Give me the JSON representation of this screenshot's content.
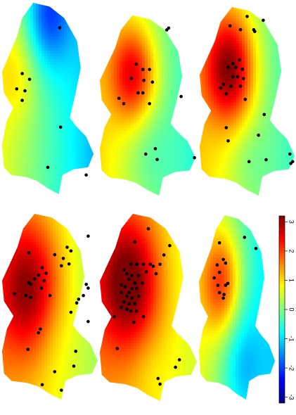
{
  "colorbar": {
    "range": [
      -3.2,
      3.2
    ],
    "ticks": [
      {
        "value": 3,
        "label": "3"
      },
      {
        "value": 2,
        "label": "2"
      },
      {
        "value": 1,
        "label": "1"
      },
      {
        "value": 0,
        "label": "0"
      },
      {
        "value": -1,
        "label": "-1"
      },
      {
        "value": -2,
        "label": "-2"
      },
      {
        "value": -3,
        "label": "-3"
      }
    ],
    "stops": [
      "#00007f",
      "#0000ff",
      "#007fff",
      "#00ffff",
      "#7fff7f",
      "#ffff00",
      "#ff7f00",
      "#ff0000",
      "#7f0000"
    ]
  },
  "panels": [
    {
      "id": "panel-1",
      "surface": {
        "base": -0.3,
        "gradient": 1.2,
        "hotspot": {
          "u": 0.18,
          "v": 0.38,
          "amp": 0.6,
          "r": 0.22
        },
        "coldspot": {
          "u": 0.5,
          "v": 0.05,
          "amp": -1.7,
          "r": 0.25
        }
      },
      "points": [
        [
          0.63,
          0.13
        ],
        [
          0.22,
          0.37
        ],
        [
          0.3,
          0.4
        ],
        [
          0.16,
          0.45
        ],
        [
          0.25,
          0.46
        ],
        [
          0.22,
          0.51
        ],
        [
          0.64,
          0.65
        ],
        [
          0.5,
          0.86
        ],
        [
          0.92,
          0.9
        ]
      ]
    },
    {
      "id": "panel-2",
      "surface": {
        "base": 0.2,
        "gradient": 1.0,
        "hotspot": {
          "u": 0.35,
          "v": 0.33,
          "amp": 2.1,
          "r": 0.24
        },
        "coldspot": {
          "u": 0.5,
          "v": 0.75,
          "amp": -0.4,
          "r": 0.25
        }
      },
      "points": [
        [
          0.72,
          0.07
        ],
        [
          0.7,
          0.08
        ],
        [
          0.38,
          0.27
        ],
        [
          0.45,
          0.3
        ],
        [
          0.52,
          0.3
        ],
        [
          0.33,
          0.35
        ],
        [
          0.46,
          0.36
        ],
        [
          0.55,
          0.37
        ],
        [
          0.4,
          0.43
        ],
        [
          0.45,
          0.43
        ],
        [
          0.2,
          0.46
        ],
        [
          0.25,
          0.49
        ],
        [
          0.52,
          0.49
        ],
        [
          0.85,
          0.45
        ],
        [
          0.48,
          0.77
        ],
        [
          0.58,
          0.74
        ],
        [
          0.6,
          0.8
        ],
        [
          0.99,
          0.79
        ]
      ]
    },
    {
      "id": "panel-3",
      "surface": {
        "base": 0.3,
        "gradient": 1.0,
        "hotspot": {
          "u": 0.32,
          "v": 0.33,
          "amp": 2.6,
          "r": 0.26
        },
        "coldspot": {
          "u": 0.5,
          "v": 0.8,
          "amp": -0.3,
          "r": 0.2
        }
      },
      "points": [
        [
          0.5,
          0.05
        ],
        [
          0.67,
          0.07
        ],
        [
          0.32,
          0.1
        ],
        [
          0.43,
          0.12
        ],
        [
          0.57,
          0.12
        ],
        [
          0.58,
          0.13
        ],
        [
          0.3,
          0.32
        ],
        [
          0.35,
          0.3
        ],
        [
          0.38,
          0.32
        ],
        [
          0.42,
          0.28
        ],
        [
          0.45,
          0.33
        ],
        [
          0.35,
          0.37
        ],
        [
          0.4,
          0.37
        ],
        [
          0.46,
          0.38
        ],
        [
          0.33,
          0.42
        ],
        [
          0.43,
          0.42
        ],
        [
          0.22,
          0.43
        ],
        [
          0.25,
          0.41
        ],
        [
          0.28,
          0.46
        ],
        [
          0.48,
          0.49
        ],
        [
          0.68,
          0.57
        ],
        [
          0.28,
          0.64
        ],
        [
          0.3,
          0.71
        ],
        [
          0.62,
          0.68
        ],
        [
          0.95,
          0.78
        ],
        [
          0.52,
          0.82
        ],
        [
          0.7,
          0.81
        ],
        [
          0.98,
          0.82
        ],
        [
          0.96,
          0.83
        ]
      ]
    },
    {
      "id": "panel-4",
      "surface": {
        "base": 0.8,
        "gradient": 0.7,
        "hotspot": {
          "u": 0.28,
          "v": 0.4,
          "amp": 2.1,
          "r": 0.33
        },
        "coldspot": {
          "u": 0.5,
          "v": 0.65,
          "amp": -0.2,
          "r": 0.2
        }
      },
      "points": [
        [
          0.9,
          0.12
        ],
        [
          0.68,
          0.18
        ],
        [
          0.72,
          0.2
        ],
        [
          0.28,
          0.21
        ],
        [
          0.55,
          0.22
        ],
        [
          0.64,
          0.24
        ],
        [
          0.7,
          0.27
        ],
        [
          0.62,
          0.28
        ],
        [
          0.42,
          0.29
        ],
        [
          0.46,
          0.32
        ],
        [
          0.38,
          0.33
        ],
        [
          0.34,
          0.35
        ],
        [
          0.44,
          0.36
        ],
        [
          0.28,
          0.37
        ],
        [
          0.3,
          0.38
        ],
        [
          0.41,
          0.4
        ],
        [
          0.13,
          0.43
        ],
        [
          0.25,
          0.44
        ],
        [
          0.3,
          0.45
        ],
        [
          0.5,
          0.44
        ],
        [
          0.88,
          0.38
        ],
        [
          0.9,
          0.4
        ],
        [
          0.85,
          0.44
        ],
        [
          0.8,
          0.46
        ],
        [
          0.78,
          0.48
        ],
        [
          0.72,
          0.53
        ],
        [
          0.9,
          0.58
        ],
        [
          0.4,
          0.62
        ],
        [
          0.38,
          0.64
        ],
        [
          0.27,
          0.73
        ],
        [
          0.77,
          0.74
        ],
        [
          0.75,
          0.82
        ],
        [
          0.55,
          0.85
        ],
        [
          0.42,
          0.92
        ],
        [
          0.62,
          0.95
        ]
      ]
    },
    {
      "id": "panel-5",
      "surface": {
        "base": 1.0,
        "gradient": 0.6,
        "hotspot": {
          "u": 0.3,
          "v": 0.37,
          "amp": 2.3,
          "r": 0.32
        },
        "coldspot": {
          "u": 0.5,
          "v": 0.8,
          "amp": -0.2,
          "r": 0.2
        }
      },
      "points": [
        [
          0.5,
          0.08
        ],
        [
          0.72,
          0.17
        ],
        [
          0.36,
          0.15
        ],
        [
          0.66,
          0.22
        ],
        [
          0.62,
          0.27
        ],
        [
          0.52,
          0.27
        ],
        [
          0.55,
          0.28
        ],
        [
          0.32,
          0.27
        ],
        [
          0.38,
          0.27
        ],
        [
          0.45,
          0.27
        ],
        [
          0.25,
          0.3
        ],
        [
          0.28,
          0.32
        ],
        [
          0.33,
          0.33
        ],
        [
          0.4,
          0.33
        ],
        [
          0.48,
          0.31
        ],
        [
          0.58,
          0.32
        ],
        [
          0.3,
          0.35
        ],
        [
          0.36,
          0.37
        ],
        [
          0.44,
          0.37
        ],
        [
          0.22,
          0.38
        ],
        [
          0.26,
          0.39
        ],
        [
          0.33,
          0.4
        ],
        [
          0.38,
          0.4
        ],
        [
          0.3,
          0.42
        ],
        [
          0.22,
          0.42
        ],
        [
          0.28,
          0.44
        ],
        [
          0.33,
          0.45
        ],
        [
          0.4,
          0.44
        ],
        [
          0.25,
          0.47
        ],
        [
          0.3,
          0.48
        ],
        [
          0.36,
          0.48
        ],
        [
          0.22,
          0.5
        ],
        [
          0.28,
          0.51
        ],
        [
          0.32,
          0.52
        ],
        [
          0.38,
          0.52
        ],
        [
          0.15,
          0.55
        ],
        [
          0.45,
          0.55
        ],
        [
          0.35,
          0.58
        ],
        [
          0.18,
          0.72
        ],
        [
          0.82,
          0.78
        ],
        [
          0.78,
          0.82
        ],
        [
          0.6,
          0.88
        ],
        [
          0.62,
          0.91
        ]
      ]
    },
    {
      "id": "panel-6",
      "surface": {
        "base": -0.2,
        "gradient": 1.1,
        "hotspot": {
          "u": 0.3,
          "v": 0.37,
          "amp": 1.9,
          "r": 0.26
        },
        "coldspot": {
          "u": 0.55,
          "v": 0.8,
          "amp": -0.9,
          "r": 0.28
        }
      },
      "points": [
        [
          0.27,
          0.15
        ],
        [
          0.6,
          0.12
        ],
        [
          0.75,
          0.18
        ],
        [
          0.32,
          0.24
        ],
        [
          0.35,
          0.26
        ],
        [
          0.24,
          0.27
        ],
        [
          0.27,
          0.31
        ],
        [
          0.2,
          0.34
        ],
        [
          0.25,
          0.38
        ],
        [
          0.35,
          0.38
        ],
        [
          0.38,
          0.37
        ],
        [
          0.27,
          0.42
        ],
        [
          0.33,
          0.43
        ],
        [
          0.32,
          0.45
        ]
      ]
    }
  ]
}
